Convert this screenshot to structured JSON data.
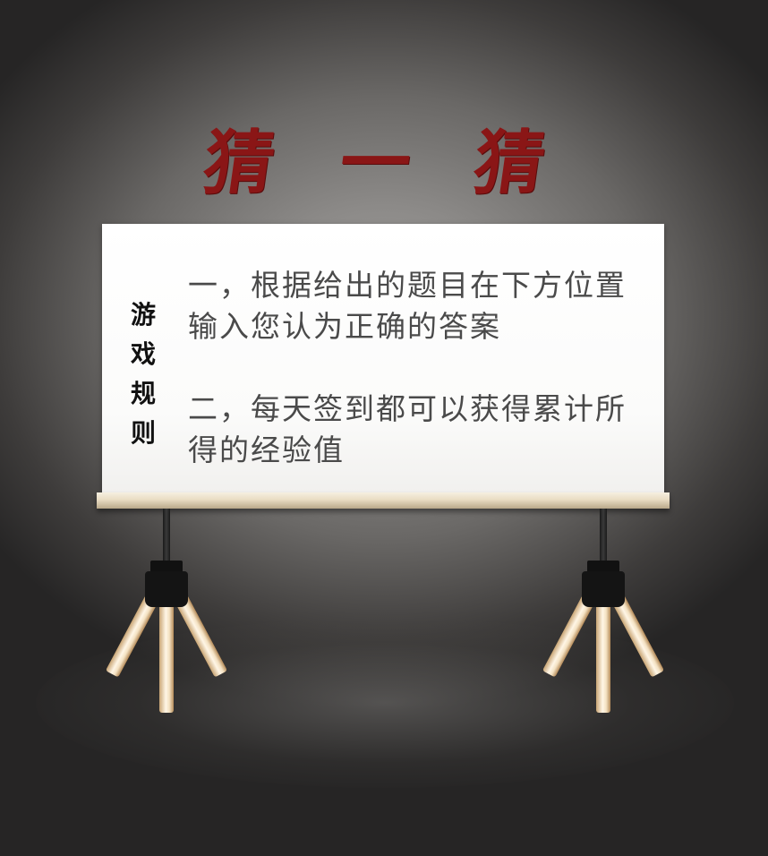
{
  "title": {
    "chars": [
      "猜",
      "一",
      "猜"
    ]
  },
  "board": {
    "side_label": [
      "游",
      "戏",
      "规",
      "则"
    ],
    "rules": [
      "一，根据给出的题目在下方位置输入您认为正确的答案",
      "二，每天签到都可以获得累计所得的经验值"
    ]
  },
  "colors": {
    "title": "#8a1616",
    "rule_text": "#4a4a4a",
    "board": "#ffffff"
  }
}
